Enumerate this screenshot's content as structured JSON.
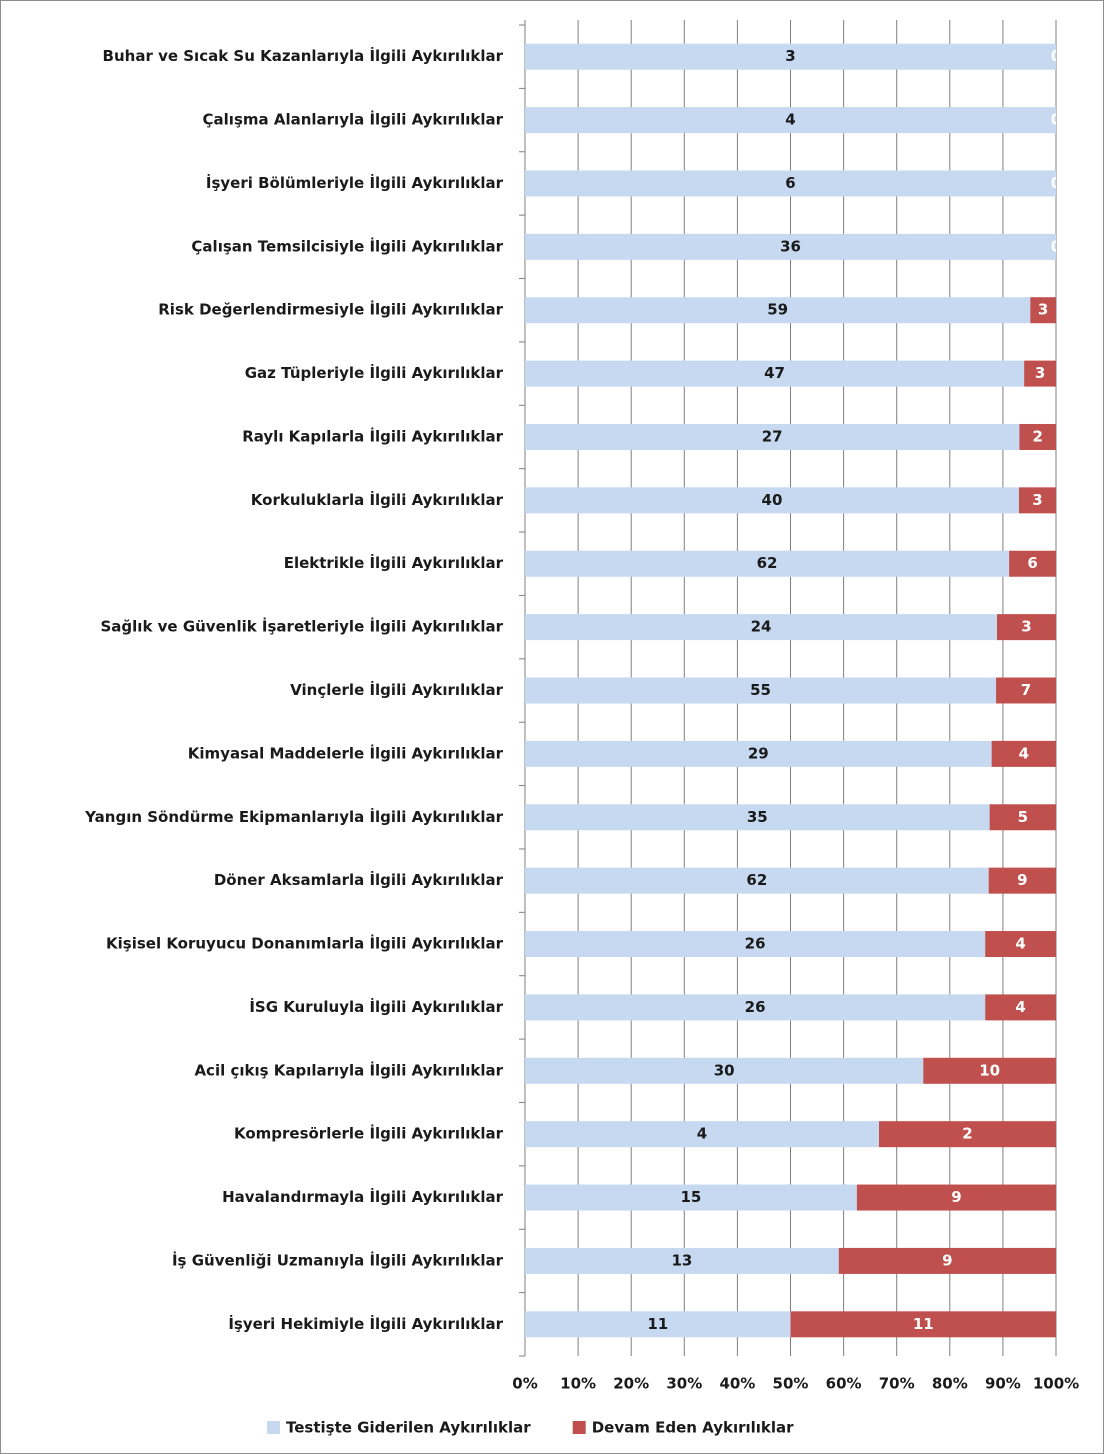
{
  "chart_data": {
    "type": "bar",
    "orientation": "horizontal",
    "stacking": "percent",
    "categories": [
      "Buhar ve Sıcak Su Kazanlarıyla İlgili Aykırılıklar",
      "Çalışma Alanlarıyla İlgili Aykırılıklar",
      "İşyeri Bölümleriyle İlgili Aykırılıklar",
      "Çalışan Temsilcisiyle İlgili Aykırılıklar",
      "Risk Değerlendirmesiyle İlgili Aykırılıklar",
      "Gaz Tüpleriyle İlgili Aykırılıklar",
      "Raylı Kapılarla İlgili Aykırılıklar",
      "Korkuluklarla İlgili Aykırılıklar",
      "Elektrikle İlgili Aykırılıklar",
      "Sağlık ve Güvenlik İşaretleriyle İlgili Aykırılıklar",
      "Vinçlerle İlgili Aykırılıklar",
      "Kimyasal Maddelerle İlgili Aykırılıklar",
      "Yangın Söndürme Ekipmanlarıyla İlgili Aykırılıklar",
      "Döner Aksamlarla İlgili Aykırılıklar",
      "Kişisel Koruyucu Donanımlarla İlgili Aykırılıklar",
      "İSG Kuruluyla İlgili Aykırılıklar",
      "Acil çıkış Kapılarıyla İlgili Aykırılıklar",
      "Kompresörlerle İlgili Aykırılıklar",
      "Havalandırmayla İlgili Aykırılıklar",
      "İş Güvenliği Uzmanıyla İlgili Aykırılıklar",
      "İşyeri Hekimiyle İlgili Aykırılıklar"
    ],
    "series": [
      {
        "name": "Testişte Giderilen Aykırılıklar",
        "color": "#c6d9f1",
        "label_color": "#1a1a1a",
        "values": [
          3,
          4,
          6,
          36,
          59,
          47,
          27,
          40,
          62,
          24,
          55,
          29,
          35,
          62,
          26,
          26,
          30,
          4,
          15,
          13,
          11
        ]
      },
      {
        "name": "Devam Eden Aykırılıklar",
        "color": "#c0504d",
        "label_color": "#ffffff",
        "values": [
          0,
          0,
          0,
          0,
          3,
          3,
          2,
          3,
          6,
          3,
          7,
          4,
          5,
          9,
          4,
          4,
          10,
          2,
          9,
          9,
          11
        ]
      }
    ],
    "xlim": [
      0,
      100
    ],
    "xticks": [
      {
        "value": 0,
        "label": "0%"
      },
      {
        "value": 10,
        "label": "10%"
      },
      {
        "value": 20,
        "label": "20%"
      },
      {
        "value": 30,
        "label": "30%"
      },
      {
        "value": 40,
        "label": "40%"
      },
      {
        "value": 50,
        "label": "50%"
      },
      {
        "value": 60,
        "label": "60%"
      },
      {
        "value": 70,
        "label": "70%"
      },
      {
        "value": 80,
        "label": "80%"
      },
      {
        "value": 90,
        "label": "90%"
      },
      {
        "value": 100,
        "label": "100%"
      }
    ],
    "grid": true,
    "legend": "bottom"
  }
}
